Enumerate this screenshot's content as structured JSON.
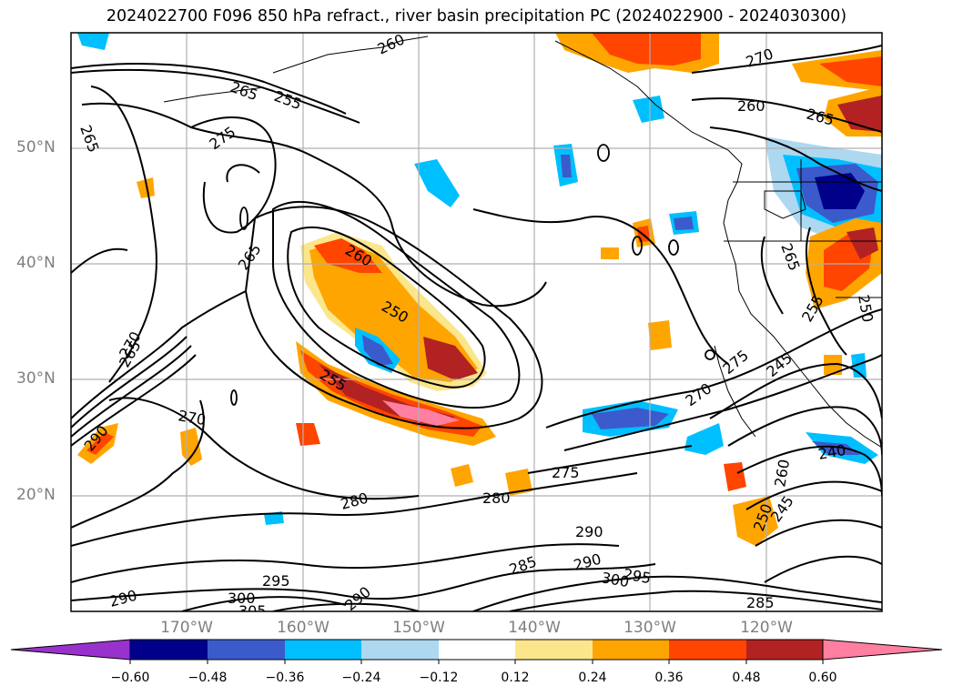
{
  "title": "2024022700 F096 850 hPa refract., river basin precipitation PC (2024022900 - 2024030300)",
  "lat_labels": [
    "50°N",
    "40°N",
    "30°N",
    "20°N"
  ],
  "lon_labels": [
    "170°W",
    "160°W",
    "150°W",
    "140°W",
    "130°W",
    "120°W"
  ],
  "colorbar": {
    "ticks": [
      "−0.60",
      "−0.48",
      "−0.36",
      "−0.24",
      "−0.12",
      "0.12",
      "0.24",
      "0.36",
      "0.48",
      "0.60"
    ],
    "colors": [
      "#9932cc",
      "#00008b",
      "#3b5bcc",
      "#00bfff",
      "#add8f0",
      "#ffffff",
      "#fce68c",
      "#ffa500",
      "#ff4500",
      "#b22222",
      "#ff7fa0"
    ]
  },
  "contour_labels": [
    "260",
    "265",
    "255",
    "275",
    "265",
    "265",
    "260",
    "250",
    "255",
    "270",
    "265",
    "290",
    "270",
    "280",
    "280",
    "275",
    "290",
    "285",
    "290",
    "300",
    "295",
    "295",
    "290",
    "300",
    "305",
    "290",
    "270",
    "275",
    "245",
    "240",
    "260",
    "250",
    "245",
    "285",
    "270",
    "260",
    "265",
    "265",
    "250",
    "255"
  ]
}
